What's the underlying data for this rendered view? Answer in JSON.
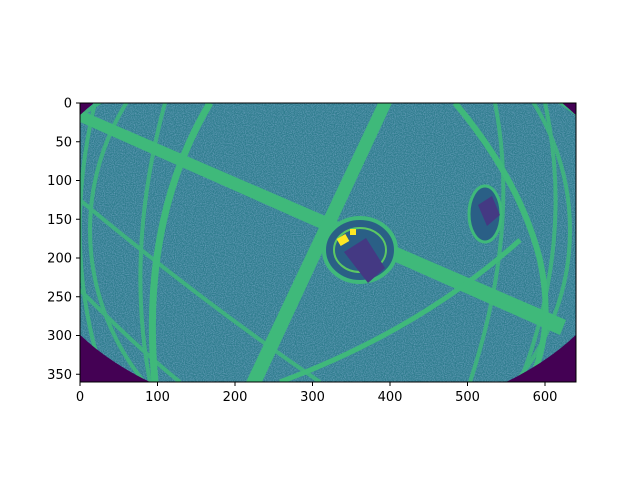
{
  "figure": {
    "x_ticks": [
      "0",
      "100",
      "200",
      "300",
      "400",
      "500",
      "600"
    ],
    "y_ticks": [
      "0",
      "50",
      "100",
      "150",
      "200",
      "250",
      "300",
      "350"
    ]
  },
  "image": {
    "description_colormap": "viridis",
    "colors": {
      "background_dark": "#440154",
      "field": "#2f7d8e",
      "field_dark": "#2a5f86",
      "band": "#3fb97a",
      "band_bright": "#5cc863",
      "object_dark": "#443983",
      "highlight": "#fde725"
    }
  }
}
